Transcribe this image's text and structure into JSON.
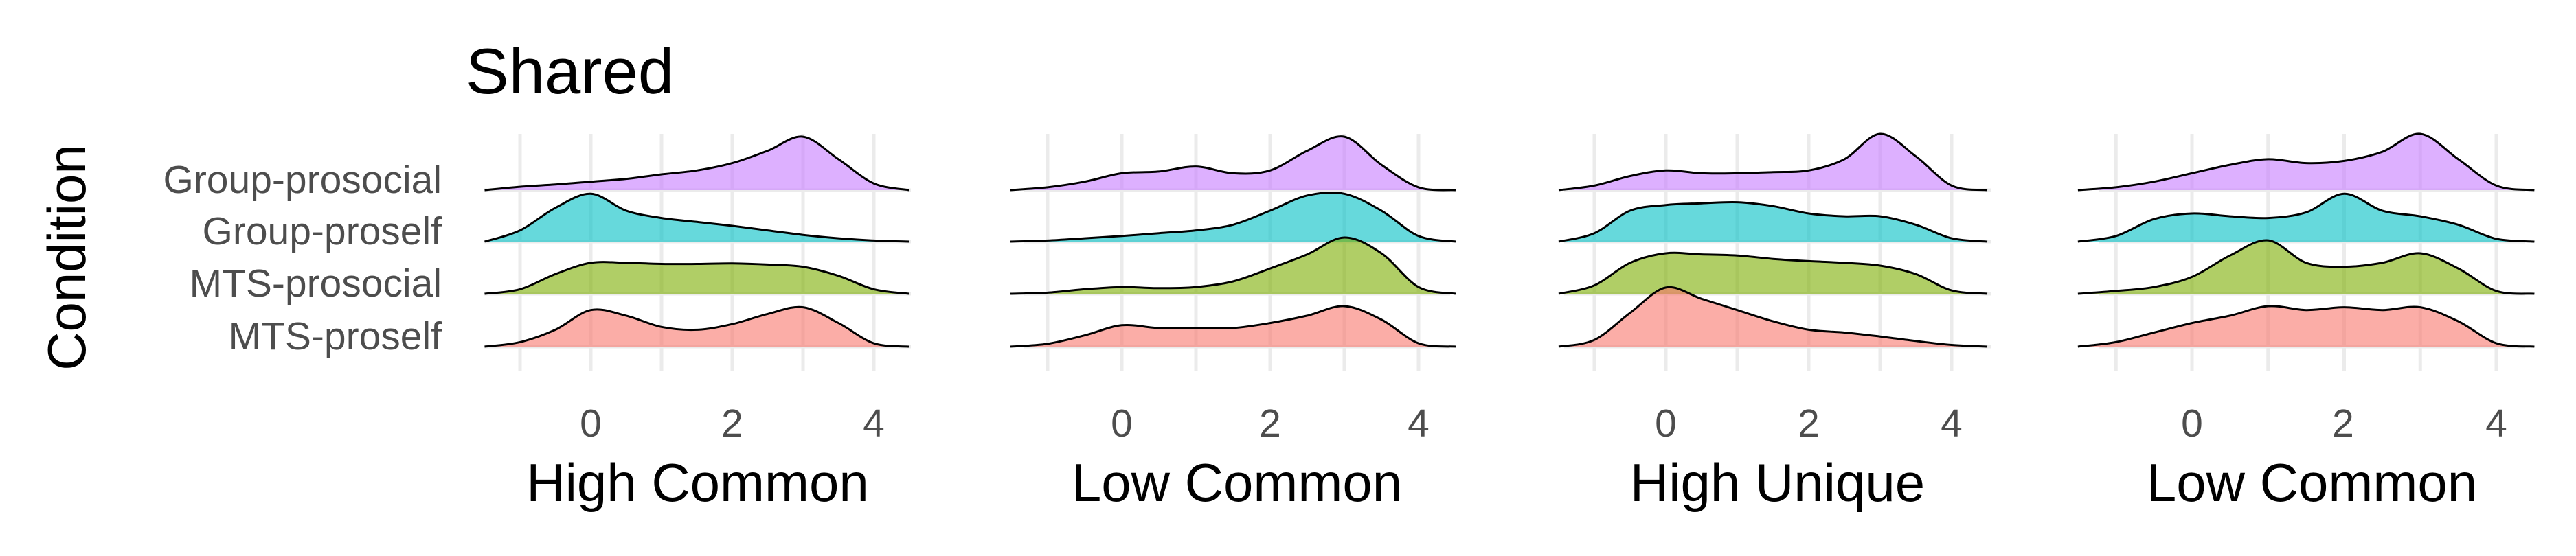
{
  "chart_data": {
    "type": "area",
    "subtype": "ridgeline",
    "title": "Shared",
    "ylabel": "Condition",
    "rows": [
      "Group-prosocial",
      "Group-proself",
      "MTS-prosocial",
      "MTS-proself"
    ],
    "row_colors": {
      "Group-prosocial": "#C77CFF",
      "Group-proself": "#00BFC4",
      "MTS-prosocial": "#7CAE00",
      "MTS-proself": "#F8766D"
    },
    "xticks": [
      0,
      2,
      4
    ],
    "xlim": [
      -1.5,
      4.5
    ],
    "grid": true,
    "legend": "none",
    "density_points_x": [
      -1.5,
      -1.0,
      -0.5,
      0.0,
      0.5,
      1.0,
      1.5,
      2.0,
      2.5,
      3.0,
      3.5,
      4.0,
      4.5
    ],
    "panels": [
      {
        "xlabel": "High Common",
        "series": [
          {
            "name": "Group-prosocial",
            "density": [
              0.0,
              0.06,
              0.1,
              0.15,
              0.2,
              0.28,
              0.35,
              0.48,
              0.7,
              0.95,
              0.55,
              0.12,
              0.0
            ]
          },
          {
            "name": "Group-proself",
            "density": [
              0.0,
              0.2,
              0.6,
              0.85,
              0.55,
              0.42,
              0.35,
              0.28,
              0.2,
              0.12,
              0.06,
              0.02,
              0.0
            ]
          },
          {
            "name": "MTS-prosocial",
            "density": [
              0.0,
              0.08,
              0.35,
              0.55,
              0.55,
              0.53,
              0.53,
              0.54,
              0.52,
              0.48,
              0.32,
              0.08,
              0.0
            ]
          },
          {
            "name": "MTS-proself",
            "density": [
              0.0,
              0.08,
              0.3,
              0.65,
              0.55,
              0.35,
              0.3,
              0.4,
              0.58,
              0.7,
              0.42,
              0.06,
              0.0
            ]
          }
        ]
      },
      {
        "xlabel": "Low Common",
        "series": [
          {
            "name": "Group-prosocial",
            "density": [
              0.0,
              0.05,
              0.15,
              0.3,
              0.33,
              0.42,
              0.3,
              0.35,
              0.7,
              0.95,
              0.45,
              0.05,
              0.0
            ]
          },
          {
            "name": "Group-proself",
            "density": [
              0.0,
              0.02,
              0.06,
              0.1,
              0.15,
              0.2,
              0.3,
              0.55,
              0.82,
              0.85,
              0.55,
              0.1,
              0.0
            ]
          },
          {
            "name": "MTS-prosocial",
            "density": [
              0.0,
              0.02,
              0.08,
              0.12,
              0.1,
              0.12,
              0.22,
              0.45,
              0.7,
              1.0,
              0.72,
              0.12,
              0.0
            ]
          },
          {
            "name": "MTS-proself",
            "density": [
              0.0,
              0.05,
              0.2,
              0.38,
              0.33,
              0.33,
              0.33,
              0.42,
              0.55,
              0.72,
              0.48,
              0.06,
              0.0
            ]
          }
        ]
      },
      {
        "xlabel": "High Unique",
        "series": [
          {
            "name": "Group-prosocial",
            "density": [
              0.0,
              0.08,
              0.25,
              0.35,
              0.3,
              0.3,
              0.32,
              0.35,
              0.55,
              1.0,
              0.6,
              0.08,
              0.0
            ]
          },
          {
            "name": "Group-proself",
            "density": [
              0.0,
              0.15,
              0.55,
              0.65,
              0.68,
              0.7,
              0.63,
              0.5,
              0.45,
              0.45,
              0.3,
              0.06,
              0.0
            ]
          },
          {
            "name": "MTS-prosocial",
            "density": [
              0.0,
              0.15,
              0.55,
              0.72,
              0.7,
              0.68,
              0.62,
              0.58,
              0.55,
              0.5,
              0.35,
              0.06,
              0.0
            ]
          },
          {
            "name": "MTS-proself",
            "density": [
              0.0,
              0.12,
              0.6,
              1.05,
              0.85,
              0.65,
              0.45,
              0.3,
              0.25,
              0.18,
              0.1,
              0.03,
              0.0
            ]
          }
        ]
      },
      {
        "xlabel": "Low Common",
        "series": [
          {
            "name": "Group-prosocial",
            "density": [
              0.0,
              0.05,
              0.15,
              0.3,
              0.45,
              0.55,
              0.48,
              0.52,
              0.68,
              1.0,
              0.55,
              0.08,
              0.0
            ]
          },
          {
            "name": "Group-proself",
            "density": [
              0.0,
              0.1,
              0.4,
              0.5,
              0.45,
              0.42,
              0.52,
              0.85,
              0.55,
              0.45,
              0.3,
              0.05,
              0.0
            ]
          },
          {
            "name": "MTS-prosocial",
            "density": [
              0.0,
              0.05,
              0.12,
              0.3,
              0.68,
              0.95,
              0.55,
              0.48,
              0.55,
              0.72,
              0.45,
              0.05,
              0.0
            ]
          },
          {
            "name": "MTS-proself",
            "density": [
              0.0,
              0.08,
              0.25,
              0.42,
              0.55,
              0.72,
              0.65,
              0.7,
              0.65,
              0.7,
              0.45,
              0.06,
              0.0
            ]
          }
        ]
      }
    ]
  }
}
